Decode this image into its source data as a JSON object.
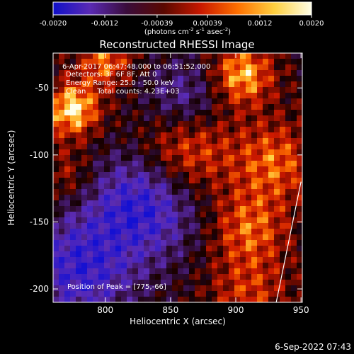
{
  "colorbar": {
    "ticks": [
      "-0.0020",
      "-0.0012",
      "-0.00039",
      "0.00039",
      "0.0012",
      "0.0020"
    ],
    "units_line": "(photons cm",
    "units_exp1": "-2",
    "units_mid": " s",
    "units_exp2": "-1",
    "units_end": " asec",
    "units_exp3": "-2",
    "units_close": ")",
    "colors": [
      "#1010c8",
      "#5a2ab4",
      "#3a0c3a",
      "#5a0800",
      "#c81800",
      "#ff7000",
      "#ffd040",
      "#ffffe8"
    ]
  },
  "chart_data": {
    "type": "heatmap",
    "title": "Reconstructed RHESSI Image",
    "xlabel": "Heliocentric X (arcsec)",
    "ylabel": "Heliocentric Y (arcsec)",
    "xlim": [
      760,
      951
    ],
    "ylim": [
      -210,
      -24
    ],
    "x_ticks": [
      800,
      850,
      900,
      950
    ],
    "y_ticks": [
      -50,
      -100,
      -150,
      -200
    ],
    "colorbar_range": [
      -0.002,
      0.002
    ],
    "peak": [
      775,
      -66
    ],
    "limb_arc": [
      [
        950,
        -120
      ],
      [
        931,
        -210
      ]
    ]
  },
  "annotations": {
    "line1": "6-Apr-2017 06:47:48.000 to 06:51:52.000",
    "line2": "Detectors: 3F 6F 8F, Att 0",
    "line3": "Energy Range: 25.0 - 50.0 keV",
    "line4": "Clean     Total counts: 4.23E+03",
    "peak_text": "Position of Peak = [775,-66]"
  },
  "footer": {
    "timestamp": "6-Sep-2022 07:43"
  }
}
